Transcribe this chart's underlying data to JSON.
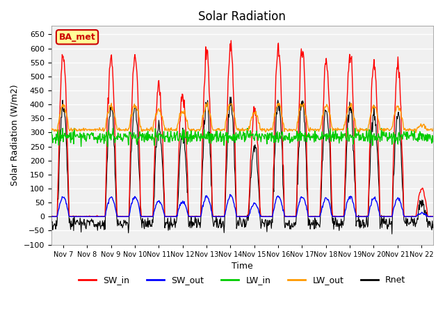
{
  "title": "Solar Radiation",
  "xlabel": "Time",
  "ylabel": "Solar Radiation (W/m2)",
  "ylim": [
    -100,
    680
  ],
  "yticks": [
    -100,
    -50,
    0,
    50,
    100,
    150,
    200,
    250,
    300,
    350,
    400,
    450,
    500,
    550,
    600,
    650
  ],
  "x_tick_labels": [
    "Nov 7",
    "Nov 8",
    "Nov 9",
    "Nov 10",
    "Nov 11",
    "Nov 12",
    "Nov 13",
    "Nov 14",
    "Nov 15",
    "Nov 16",
    "Nov 17",
    "Nov 18",
    "Nov 19",
    "Nov 20",
    "Nov 21",
    "Nov 22"
  ],
  "colors": {
    "SW_in": "#ff0000",
    "SW_out": "#0000ff",
    "LW_in": "#00cc00",
    "LW_out": "#ff9900",
    "Rnet": "#000000"
  },
  "legend_label": "BA_met",
  "legend_bg": "#ffff99",
  "legend_border": "#cc0000",
  "background_color": "#f0f0f0",
  "grid_color": "#ffffff",
  "n_days": 16,
  "sw_in_peaks": [
    580,
    0,
    580,
    580,
    475,
    440,
    580,
    600,
    380,
    590,
    590,
    565,
    580,
    555,
    540,
    100
  ],
  "lw_out_night": 310,
  "lw_in_day": 285,
  "rnet_night": -55
}
